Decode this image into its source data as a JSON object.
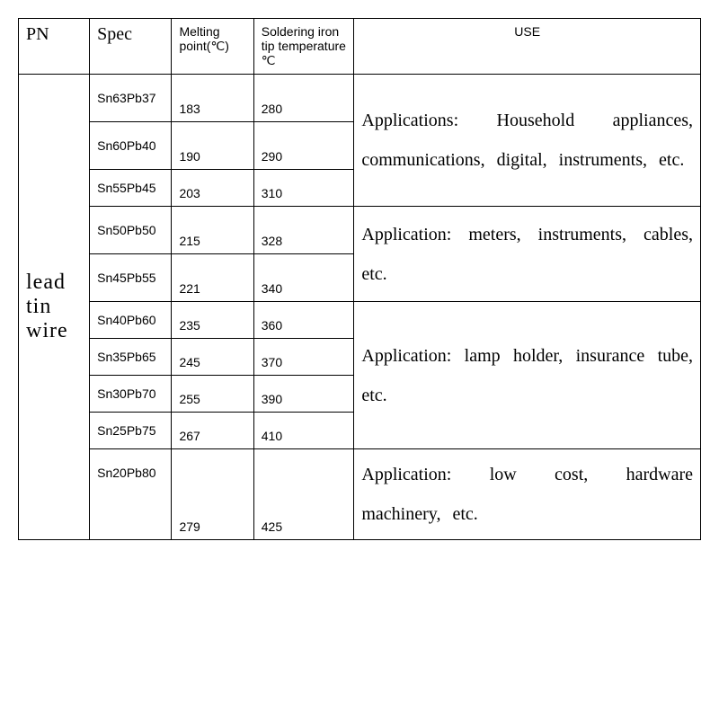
{
  "headers": {
    "pn": "PN",
    "spec": "Spec",
    "melting": "Melting point(℃)",
    "tip": "Soldering iron tip temperature ℃",
    "use": "USE"
  },
  "pn_label": "lead tin wire",
  "rows": [
    {
      "spec": "Sn63Pb37",
      "melt": "183",
      "tip": "280"
    },
    {
      "spec": "Sn60Pb40",
      "melt": "190",
      "tip": "290"
    },
    {
      "spec": "Sn55Pb45",
      "melt": "203",
      "tip": "310"
    },
    {
      "spec": "Sn50Pb50",
      "melt": "215",
      "tip": "328"
    },
    {
      "spec": "Sn45Pb55",
      "melt": "221",
      "tip": "340"
    },
    {
      "spec": "Sn40Pb60",
      "melt": "235",
      "tip": "360"
    },
    {
      "spec": "Sn35Pb65",
      "melt": "245",
      "tip": "370"
    },
    {
      "spec": "Sn30Pb70",
      "melt": "255",
      "tip": "390"
    },
    {
      "spec": "Sn25Pb75",
      "melt": "267",
      "tip": "410"
    },
    {
      "spec": "Sn20Pb80",
      "melt": "279",
      "tip": "425"
    }
  ],
  "uses": {
    "group1": "Applications: Household appliances, communications, digital, instruments, etc.",
    "group2": "Application: meters, instruments, cables, etc.",
    "group3": "Application: lamp holder, insurance tube, etc.",
    "group4": "Application: low cost, hardware machinery, etc."
  }
}
